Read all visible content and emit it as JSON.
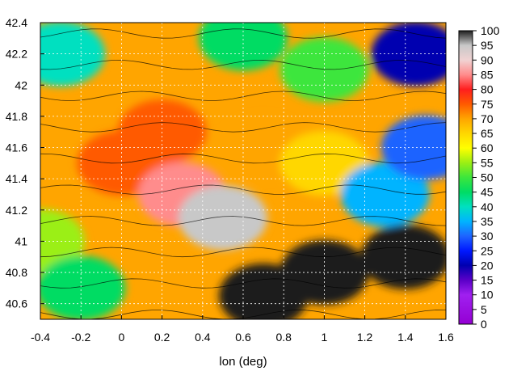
{
  "chart_data": {
    "type": "heatmap",
    "title": "",
    "xlabel": "lon (deg)",
    "ylabel": "",
    "xlim": [
      -0.4,
      1.6
    ],
    "ylim": [
      40.5,
      42.4
    ],
    "x_ticks": [
      "-0.4",
      "-0.2",
      "0",
      "0.2",
      "0.4",
      "0.6",
      "0.8",
      "1",
      "1.2",
      "1.4",
      "1.6"
    ],
    "y_ticks": [
      "40.6",
      "40.8",
      "41",
      "41.2",
      "41.4",
      "41.6",
      "41.8",
      "42",
      "42.2",
      "42.4"
    ],
    "x_tick_values": [
      -0.4,
      -0.2,
      0,
      0.2,
      0.4,
      0.6,
      0.8,
      1.0,
      1.2,
      1.4,
      1.6
    ],
    "y_tick_values": [
      40.6,
      40.8,
      41.0,
      41.2,
      41.4,
      41.6,
      41.8,
      42.0,
      42.2,
      42.4
    ],
    "colorbar": {
      "min": 0,
      "max": 100,
      "ticks": [
        "100",
        "95",
        "90",
        "85",
        "80",
        "75",
        "70",
        "65",
        "60",
        "55",
        "50",
        "45",
        "40",
        "35",
        "30",
        "25",
        "20",
        "15",
        "10",
        "5",
        "0"
      ],
      "tick_values": [
        100,
        95,
        90,
        85,
        80,
        75,
        70,
        65,
        60,
        55,
        50,
        45,
        40,
        35,
        30,
        25,
        20,
        15,
        10,
        5,
        0
      ],
      "stops": [
        [
          0,
          "#9400d3"
        ],
        [
          10,
          "#a020f0"
        ],
        [
          15,
          "#5a00c8"
        ],
        [
          20,
          "#0000b0"
        ],
        [
          25,
          "#0018ff"
        ],
        [
          30,
          "#1e64ff"
        ],
        [
          35,
          "#00b4ff"
        ],
        [
          40,
          "#00e0c0"
        ],
        [
          45,
          "#00dc64"
        ],
        [
          50,
          "#3ce63c"
        ],
        [
          55,
          "#9bef14"
        ],
        [
          60,
          "#ffff00"
        ],
        [
          65,
          "#ffd700"
        ],
        [
          70,
          "#ffa500"
        ],
        [
          75,
          "#ff5a00"
        ],
        [
          80,
          "#ff1e1e"
        ],
        [
          85,
          "#ff8c8c"
        ],
        [
          90,
          "#f0d2d2"
        ],
        [
          95,
          "#c8c8c8"
        ],
        [
          100,
          "#1e1e1e"
        ]
      ]
    },
    "grid": true,
    "grid_style": "dotted-white",
    "contours": true,
    "lat_lines": [
      40.6,
      40.8,
      41.0,
      41.2,
      41.4,
      41.6,
      41.8,
      42.0,
      42.2,
      42.4
    ],
    "field_regions": [
      {
        "lon": -0.4,
        "lat": 41.0,
        "value": 55
      },
      {
        "lon": -0.2,
        "lat": 40.7,
        "value": 45
      },
      {
        "lon": 0.0,
        "lat": 41.5,
        "value": 75
      },
      {
        "lon": 0.2,
        "lat": 41.7,
        "value": 78
      },
      {
        "lon": 0.3,
        "lat": 41.3,
        "value": 88
      },
      {
        "lon": 0.5,
        "lat": 41.15,
        "value": 98
      },
      {
        "lon": 0.7,
        "lat": 41.6,
        "value": 72
      },
      {
        "lon": 1.0,
        "lat": 41.5,
        "value": 65
      },
      {
        "lon": 1.3,
        "lat": 41.3,
        "value": 35
      },
      {
        "lon": 1.5,
        "lat": 41.6,
        "value": 30
      },
      {
        "lon": 1.0,
        "lat": 42.1,
        "value": 50
      },
      {
        "lon": 0.6,
        "lat": 42.3,
        "value": 45
      },
      {
        "lon": 1.0,
        "lat": 40.8,
        "value": 100
      },
      {
        "lon": 1.4,
        "lat": 40.9,
        "value": 100
      },
      {
        "lon": 0.7,
        "lat": 40.65,
        "value": 100
      },
      {
        "lon": -0.3,
        "lat": 42.2,
        "value": 40
      },
      {
        "lon": 1.45,
        "lat": 42.2,
        "value": 20
      }
    ]
  }
}
